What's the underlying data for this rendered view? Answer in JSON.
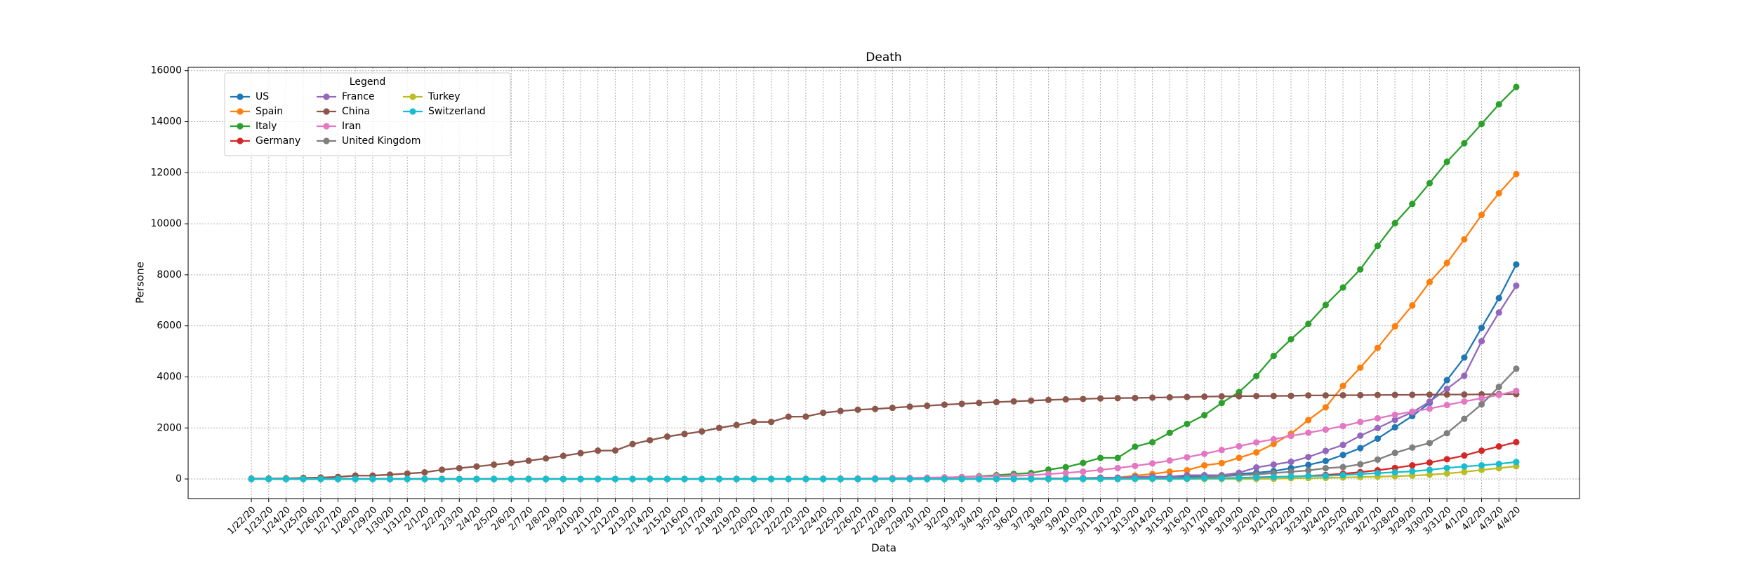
{
  "chart_data": {
    "type": "line",
    "title": "Death",
    "x_label": "Data",
    "y_label": "Persone",
    "categories": [
      "1/22/20",
      "1/23/20",
      "1/24/20",
      "1/25/20",
      "1/26/20",
      "1/27/20",
      "1/28/20",
      "1/29/20",
      "1/30/20",
      "1/31/20",
      "2/1/20",
      "2/2/20",
      "2/3/20",
      "2/4/20",
      "2/5/20",
      "2/6/20",
      "2/7/20",
      "2/8/20",
      "2/9/20",
      "2/10/20",
      "2/11/20",
      "2/12/20",
      "2/13/20",
      "2/14/20",
      "2/15/20",
      "2/16/20",
      "2/17/20",
      "2/18/20",
      "2/19/20",
      "2/20/20",
      "2/21/20",
      "2/22/20",
      "2/23/20",
      "2/24/20",
      "2/25/20",
      "2/26/20",
      "2/27/20",
      "2/28/20",
      "2/29/20",
      "3/1/20",
      "3/2/20",
      "3/3/20",
      "3/4/20",
      "3/5/20",
      "3/6/20",
      "3/7/20",
      "3/8/20",
      "3/9/20",
      "3/10/20",
      "3/11/20",
      "3/12/20",
      "3/13/20",
      "3/14/20",
      "3/15/20",
      "3/16/20",
      "3/17/20",
      "3/18/20",
      "3/19/20",
      "3/20/20",
      "3/21/20",
      "3/22/20",
      "3/23/20",
      "3/24/20",
      "3/25/20",
      "3/26/20",
      "3/27/20",
      "3/28/20",
      "3/29/20",
      "3/30/20",
      "3/31/20",
      "4/1/20",
      "4/2/20",
      "4/3/20",
      "4/4/20"
    ],
    "ylim": [
      -768,
      16130
    ],
    "yticks": [
      0,
      2000,
      4000,
      6000,
      8000,
      10000,
      12000,
      14000,
      16000
    ],
    "grid": true,
    "legend": {
      "title": "Legend",
      "loc": "upper left",
      "columns": 3
    },
    "series": [
      {
        "name": "US",
        "color": "#1f77b4",
        "values": [
          0,
          0,
          0,
          0,
          0,
          0,
          0,
          0,
          0,
          0,
          0,
          0,
          0,
          0,
          0,
          0,
          0,
          0,
          0,
          0,
          0,
          0,
          0,
          0,
          0,
          0,
          0,
          0,
          0,
          0,
          0,
          0,
          0,
          0,
          0,
          0,
          0,
          0,
          1,
          1,
          6,
          7,
          11,
          12,
          14,
          17,
          21,
          22,
          28,
          36,
          40,
          47,
          54,
          63,
          85,
          108,
          118,
          200,
          244,
          307,
          427,
          552,
          706,
          942,
          1209,
          1581,
          2026,
          2467,
          2978,
          3873,
          4757,
          5926,
          7087,
          8407
        ]
      },
      {
        "name": "Spain",
        "color": "#ff7f0e",
        "values": [
          0,
          0,
          0,
          0,
          0,
          0,
          0,
          0,
          0,
          0,
          0,
          0,
          0,
          0,
          0,
          0,
          0,
          0,
          0,
          0,
          0,
          0,
          0,
          0,
          0,
          0,
          0,
          0,
          0,
          0,
          0,
          0,
          0,
          0,
          0,
          0,
          0,
          0,
          0,
          0,
          0,
          1,
          2,
          3,
          5,
          10,
          17,
          28,
          35,
          54,
          55,
          133,
          195,
          289,
          342,
          533,
          623,
          830,
          1043,
          1375,
          1772,
          2311,
          2808,
          3647,
          4365,
          5138,
          5982,
          6803,
          7716,
          8464,
          9387,
          10348,
          11198,
          11947
        ]
      },
      {
        "name": "Italy",
        "color": "#2ca02c",
        "values": [
          0,
          0,
          0,
          0,
          0,
          0,
          0,
          0,
          0,
          0,
          0,
          0,
          0,
          0,
          0,
          0,
          0,
          0,
          0,
          0,
          0,
          0,
          0,
          0,
          0,
          0,
          0,
          0,
          0,
          0,
          1,
          2,
          3,
          7,
          10,
          12,
          17,
          21,
          29,
          34,
          52,
          79,
          107,
          148,
          197,
          233,
          366,
          463,
          631,
          827,
          827,
          1266,
          1441,
          1809,
          2158,
          2503,
          2978,
          3405,
          4032,
          4825,
          5476,
          6077,
          6820,
          7503,
          8215,
          9134,
          10023,
          10779,
          11591,
          12428,
          13155,
          13915,
          14681,
          15362
        ]
      },
      {
        "name": "Germany",
        "color": "#d62728",
        "values": [
          0,
          0,
          0,
          0,
          0,
          0,
          0,
          0,
          0,
          0,
          0,
          0,
          0,
          0,
          0,
          0,
          0,
          0,
          0,
          0,
          0,
          0,
          0,
          0,
          0,
          0,
          0,
          0,
          0,
          0,
          0,
          0,
          0,
          0,
          0,
          0,
          0,
          0,
          0,
          0,
          0,
          0,
          0,
          0,
          0,
          0,
          0,
          2,
          2,
          3,
          3,
          7,
          9,
          11,
          17,
          24,
          28,
          44,
          67,
          84,
          94,
          123,
          157,
          206,
          267,
          342,
          433,
          533,
          645,
          775,
          920,
          1107,
          1275,
          1444
        ]
      },
      {
        "name": "France",
        "color": "#9467bd",
        "values": [
          0,
          0,
          0,
          0,
          0,
          0,
          0,
          0,
          0,
          0,
          0,
          0,
          0,
          0,
          0,
          0,
          0,
          0,
          0,
          0,
          0,
          0,
          0,
          1,
          1,
          1,
          1,
          1,
          1,
          1,
          1,
          1,
          1,
          1,
          1,
          2,
          2,
          2,
          2,
          2,
          3,
          4,
          4,
          6,
          9,
          11,
          19,
          19,
          33,
          48,
          48,
          79,
          91,
          91,
          149,
          149,
          149,
          244,
          451,
          563,
          676,
          862,
          1102,
          1333,
          1698,
          1997,
          2317,
          2611,
          3030,
          3532,
          4043,
          5398,
          6520,
          7574
        ]
      },
      {
        "name": "China",
        "color": "#8c564b",
        "values": [
          17,
          18,
          26,
          42,
          56,
          82,
          131,
          133,
          171,
          213,
          259,
          361,
          425,
          490,
          562,
          632,
          717,
          804,
          904,
          1011,
          1111,
          1116,
          1368,
          1520,
          1662,
          1765,
          1863,
          2002,
          2114,
          2236,
          2236,
          2441,
          2443,
          2593,
          2663,
          2715,
          2744,
          2788,
          2835,
          2870,
          2912,
          2945,
          2981,
          3013,
          3042,
          3070,
          3097,
          3120,
          3136,
          3158,
          3169,
          3176,
          3189,
          3199,
          3213,
          3226,
          3237,
          3245,
          3249,
          3253,
          3259,
          3274,
          3274,
          3281,
          3285,
          3291,
          3296,
          3299,
          3304,
          3308,
          3309,
          3316,
          3322,
          3326
        ]
      },
      {
        "name": "Iran",
        "color": "#e377c2",
        "values": [
          0,
          0,
          0,
          0,
          0,
          0,
          0,
          0,
          0,
          0,
          0,
          0,
          0,
          0,
          0,
          0,
          0,
          0,
          0,
          0,
          0,
          0,
          0,
          0,
          0,
          0,
          0,
          0,
          2,
          2,
          4,
          5,
          8,
          12,
          16,
          19,
          26,
          34,
          43,
          54,
          66,
          77,
          92,
          107,
          124,
          145,
          194,
          237,
          291,
          354,
          429,
          514,
          611,
          724,
          853,
          988,
          1135,
          1284,
          1433,
          1556,
          1685,
          1812,
          1934,
          2077,
          2234,
          2378,
          2517,
          2640,
          2757,
          2898,
          3036,
          3160,
          3294,
          3452
        ]
      },
      {
        "name": "United Kingdom",
        "color": "#7f7f7f",
        "values": [
          0,
          0,
          0,
          0,
          0,
          0,
          0,
          0,
          0,
          0,
          0,
          0,
          0,
          0,
          0,
          0,
          0,
          0,
          0,
          0,
          0,
          0,
          0,
          0,
          0,
          0,
          0,
          0,
          0,
          0,
          0,
          0,
          0,
          0,
          0,
          0,
          0,
          0,
          0,
          0,
          0,
          0,
          0,
          1,
          1,
          2,
          2,
          3,
          6,
          8,
          8,
          8,
          21,
          35,
          55,
          71,
          104,
          144,
          177,
          233,
          282,
          335,
          423,
          465,
          578,
          761,
          1021,
          1231,
          1411,
          1793,
          2357,
          2926,
          3611,
          4320
        ]
      },
      {
        "name": "Turkey",
        "color": "#bcbd22",
        "values": [
          0,
          0,
          0,
          0,
          0,
          0,
          0,
          0,
          0,
          0,
          0,
          0,
          0,
          0,
          0,
          0,
          0,
          0,
          0,
          0,
          0,
          0,
          0,
          0,
          0,
          0,
          0,
          0,
          0,
          0,
          0,
          0,
          0,
          0,
          0,
          0,
          0,
          0,
          0,
          0,
          0,
          0,
          0,
          0,
          0,
          0,
          0,
          0,
          0,
          0,
          0,
          0,
          0,
          0,
          0,
          1,
          2,
          3,
          4,
          9,
          30,
          37,
          44,
          59,
          75,
          92,
          108,
          131,
          168,
          214,
          277,
          356,
          425,
          501
        ]
      },
      {
        "name": "Switzerland",
        "color": "#17becf",
        "values": [
          0,
          0,
          0,
          0,
          0,
          0,
          0,
          0,
          0,
          0,
          0,
          0,
          0,
          0,
          0,
          0,
          0,
          0,
          0,
          0,
          0,
          0,
          0,
          0,
          0,
          0,
          0,
          0,
          0,
          0,
          0,
          0,
          0,
          0,
          0,
          0,
          0,
          0,
          0,
          0,
          0,
          0,
          0,
          1,
          1,
          1,
          2,
          2,
          3,
          4,
          4,
          11,
          13,
          14,
          14,
          27,
          28,
          41,
          54,
          75,
          98,
          120,
          122,
          153,
          191,
          231,
          264,
          300,
          359,
          433,
          488,
          536,
          591,
          666
        ]
      }
    ]
  }
}
